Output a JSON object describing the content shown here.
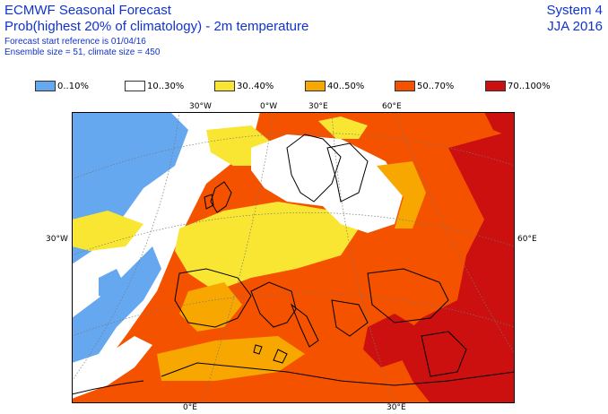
{
  "header": {
    "title": "ECMWF Seasonal Forecast",
    "subtitle": "Prob(highest 20% of climatology) - 2m temperature",
    "forecast_ref": "Forecast start reference is 01/04/16",
    "ensemble_info": "Ensemble size = 51, climate size = 450",
    "system": "System 4",
    "season": "JJA 2016"
  },
  "legend": [
    {
      "label": "0..10%",
      "color": "#66a8f0"
    },
    {
      "label": "10..30%",
      "color": "#ffffff"
    },
    {
      "label": "30..40%",
      "color": "#f9e633"
    },
    {
      "label": "40..50%",
      "color": "#f7a700"
    },
    {
      "label": "50..70%",
      "color": "#f55200"
    },
    {
      "label": "70..100%",
      "color": "#cc0f0f"
    }
  ],
  "coords": {
    "top": [
      "30°W",
      "0°W",
      "30°E",
      "60°E"
    ],
    "left": "30°W",
    "right": "60°E",
    "bottom": [
      "0°E",
      "30°E"
    ]
  }
}
